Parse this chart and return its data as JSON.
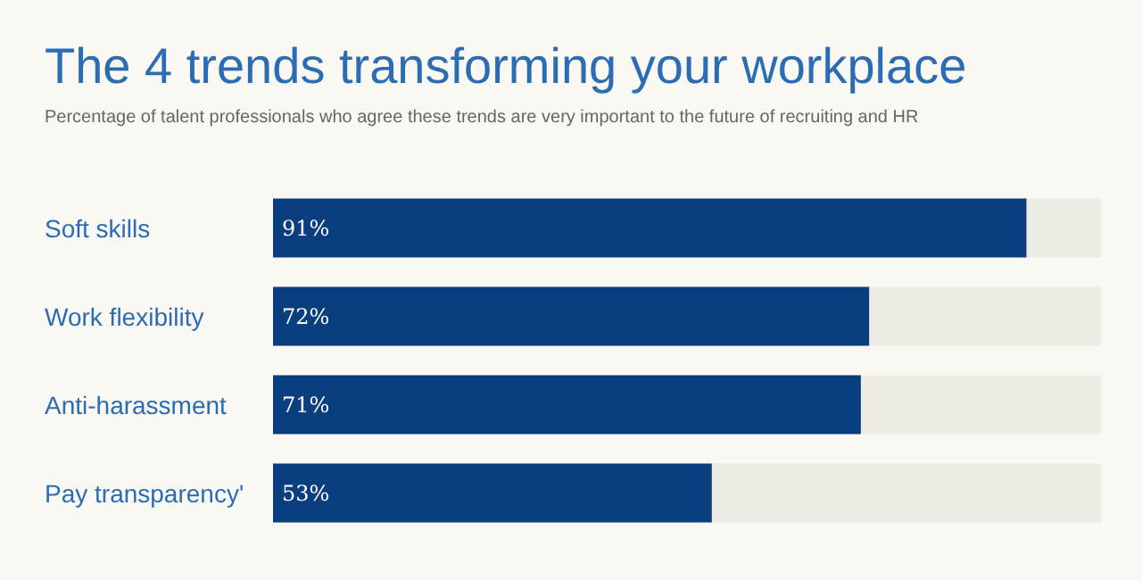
{
  "chart_data": {
    "type": "bar",
    "orientation": "horizontal",
    "title": "The 4 trends transforming your workplace",
    "subtitle": "Percentage of talent professionals who agree these trends are very important to the future of recruiting and HR",
    "categories": [
      "Soft skills",
      "Work flexibility",
      "Anti-harassment",
      "Pay transparency'"
    ],
    "values": [
      91,
      72,
      71,
      53
    ],
    "color": "#0a3e7f",
    "value_labels": [
      "91%",
      "72%",
      "71%",
      "53%"
    ],
    "xlim": [
      0,
      100
    ],
    "tick_labels": "y",
    "grid": false
  }
}
